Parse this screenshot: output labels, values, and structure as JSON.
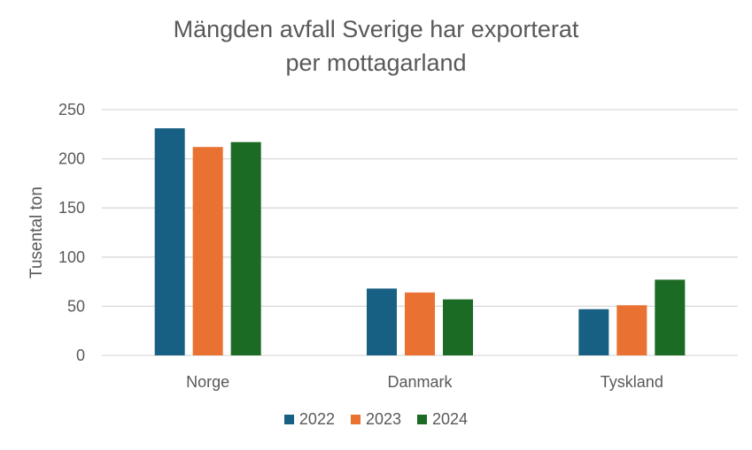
{
  "chart_data": {
    "type": "bar",
    "title_lines": [
      "Mängden avfall Sverige har exporterat",
      "per mottagarland"
    ],
    "xlabel": "",
    "ylabel": "Tusental ton",
    "ylim": [
      0,
      250
    ],
    "yticks": [
      0,
      50,
      100,
      150,
      200,
      250
    ],
    "grid": true,
    "legend_placement": "bottom",
    "categories": [
      "Norge",
      "Danmark",
      "Tyskland"
    ],
    "series": [
      {
        "name": "2022",
        "color": "#175F83",
        "values": [
          231,
          68,
          47
        ]
      },
      {
        "name": "2023",
        "color": "#E97132",
        "values": [
          212,
          64,
          51
        ]
      },
      {
        "name": "2024",
        "color": "#1B6B24",
        "values": [
          217,
          57,
          77
        ]
      }
    ]
  }
}
